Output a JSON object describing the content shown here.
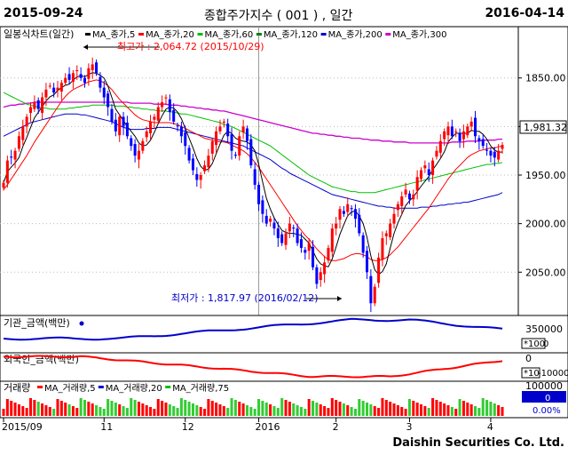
{
  "header": {
    "start_date": "2015-09-24",
    "title": "종합주가지수 ( 001 ) , 일간",
    "end_date": "2016-04-14"
  },
  "footer": {
    "company": "Daishin Securities Co. Ltd."
  },
  "legend": {
    "title": "일봉식차트(일간)",
    "items": [
      {
        "label": "MA_종가,5",
        "color": "#000000"
      },
      {
        "label": "MA_종가,20",
        "color": "#ff0000"
      },
      {
        "label": "MA_종가,60",
        "color": "#00c000"
      },
      {
        "label": "MA_종가,120",
        "color": "#008000"
      },
      {
        "label": "MA_종가,200",
        "color": "#0000cc"
      },
      {
        "label": "MA_종가,300",
        "color": "#cc00cc"
      }
    ]
  },
  "annotations": {
    "high": "최고가 : 2,064.72 (2015/10/29)",
    "low": "최저가 : 1,817.97 (2016/02/12)",
    "last_price": "1,981.32"
  },
  "sub_panels": {
    "institution": {
      "title": "기관_금액(백만)",
      "tick": "350000",
      "tick2": "0",
      "scale": "*100"
    },
    "foreign": {
      "title": "외국인_금액(백만)",
      "tick": "0",
      "tick2": "-100000",
      "scale": "*10"
    },
    "volume": {
      "title": "거래량",
      "legend": [
        "MA_거래량,5",
        "MA_거래량,20",
        "MA_거래량,75"
      ],
      "tick": "100000",
      "tick2": "0",
      "box_value": "0",
      "box_pct": "0.00%"
    }
  },
  "x_axis": {
    "labels": [
      "2015/09",
      "11",
      "12",
      "2016",
      "2",
      "3",
      "4"
    ]
  },
  "y_axis": {
    "ticks": [
      "2050.00",
      "2000.00",
      "1950.00",
      "1900.00",
      "1850.00"
    ]
  },
  "colors": {
    "up": "#ff0000",
    "down": "#0000ff",
    "ma5": "#000000",
    "ma20": "#ff0000",
    "ma60": "#00c000",
    "ma120": "#800000",
    "ma200": "#0000cc",
    "ma300": "#cc00cc"
  },
  "chart_data": {
    "type": "candlestick",
    "y_range": [
      1810,
      2090
    ],
    "y_ticks": [
      1850,
      1900,
      1950,
      2000,
      2050
    ],
    "x_labels": [
      "2015/09",
      "11",
      "12",
      "2016",
      "2",
      "3",
      "4"
    ],
    "closes": [
      1942,
      1965,
      1968,
      1975,
      1990,
      2000,
      2010,
      2020,
      2025,
      2018,
      2030,
      2038,
      2042,
      2035,
      2040,
      2045,
      2050,
      2048,
      2055,
      2058,
      2050,
      2045,
      2060,
      2064,
      2055,
      2040,
      2030,
      2020,
      2005,
      1995,
      2010,
      2000,
      1990,
      1980,
      1970,
      1975,
      1985,
      1995,
      2005,
      2010,
      2020,
      2025,
      2030,
      2015,
      2005,
      2000,
      1990,
      1980,
      1965,
      1955,
      1945,
      1950,
      1960,
      1970,
      1985,
      1995,
      2000,
      2005,
      1990,
      1975,
      1970,
      1990,
      2000,
      1985,
      1960,
      1940,
      1920,
      1910,
      1900,
      1905,
      1895,
      1885,
      1880,
      1890,
      1900,
      1895,
      1880,
      1875,
      1870,
      1880,
      1855,
      1838,
      1850,
      1860,
      1875,
      1895,
      1900,
      1915,
      1910,
      1920,
      1915,
      1905,
      1890,
      1870,
      1850,
      1818,
      1835,
      1865,
      1885,
      1890,
      1900,
      1910,
      1920,
      1928,
      1935,
      1925,
      1930,
      1948,
      1955,
      1960,
      1950,
      1965,
      1975,
      1985,
      1995,
      2000,
      1990,
      1995,
      1985,
      1995,
      2000,
      2005,
      1990,
      1985,
      1980,
      1975,
      1970,
      1968,
      1975,
      1981
    ],
    "ma20": [
      1935,
      1940,
      1946,
      1952,
      1958,
      1964,
      1970,
      1977,
      1984,
      1990,
      1996,
      2002,
      2008,
      2014,
      2020,
      2026,
      2031,
      2035,
      2038,
      2040,
      2042,
      2044,
      2046,
      2047,
      2048,
      2047,
      2045,
      2042,
      2038,
      2033,
      2028,
      2024,
      2020,
      2016,
      2012,
      2009,
      2007,
      2006,
      2005,
      2004,
      2004,
      2004,
      2004,
      2004,
      2003,
      2002,
      2000,
      1998,
      1996,
      1994,
      1992,
      1990,
      1988,
      1987,
      1986,
      1985,
      1984,
      1984,
      1983,
      1981,
      1979,
      1977,
      1975,
      1972,
      1968,
      1963,
      1958,
      1952,
      1946,
      1940,
      1934,
      1928,
      1922,
      1916,
      1910,
      1904,
      1898,
      1893,
      1888,
      1884,
      1879,
      1874,
      1870,
      1866,
      1863,
      1862,
      1862,
      1863,
      1864,
      1866,
      1868,
      1869,
      1869,
      1868,
      1866,
      1863,
      1862,
      1862,
      1863,
      1865,
      1868,
      1872,
      1876,
      1881,
      1886,
      1891,
      1896,
      1901,
      1906,
      1911,
      1916,
      1922,
      1928,
      1934,
      1940,
      1946,
      1951,
      1956,
      1960,
      1964,
      1968,
      1971,
      1973,
      1975,
      1976,
      1977,
      1978,
      1978,
      1979,
      1980
    ],
    "ma60": [
      2035,
      2033,
      2031,
      2029,
      2027,
      2025,
      2023,
      2022,
      2021,
      2020,
      2019,
      2019,
      2018,
      2018,
      2018,
      2018,
      2018,
      2019,
      2019,
      2020,
      2020,
      2021,
      2021,
      2022,
      2022,
      2022,
      2022,
      2022,
      2022,
      2021,
      2021,
      2021,
      2020,
      2020,
      2019,
      2019,
      2018,
      2018,
      2017,
      2017,
      2016,
      2016,
      2016,
      2015,
      2015,
      2014,
      2013,
      2013,
      2012,
      2011,
      2010,
      2009,
      2008,
      2007,
      2006,
      2005,
      2004,
      2002,
      2001,
      2000,
      1998,
      1996,
      1994,
      1992,
      1990,
      1988,
      1986,
      1984,
      1982,
      1980,
      1977,
      1974,
      1971,
      1968,
      1965,
      1962,
      1959,
      1956,
      1953,
      1950,
      1948,
      1946,
      1944,
      1942,
      1940,
      1938,
      1937,
      1936,
      1935,
      1934,
      1933,
      1933,
      1932,
      1932,
      1932,
      1932,
      1932,
      1933,
      1934,
      1935,
      1936,
      1937,
      1938,
      1939,
      1940,
      1941,
      1942,
      1943,
      1944,
      1945,
      1946,
      1947,
      1948,
      1949,
      1950,
      1951,
      1952,
      1953,
      1954,
      1955,
      1956,
      1957,
      1958,
      1959,
      1960,
      1961,
      1961,
      1962,
      1962,
      1963
    ],
    "ma200": [
      1990,
      1992,
      1994,
      1996,
      1998,
      2000,
      2002,
      2004,
      2005,
      2006,
      2007,
      2008,
      2009,
      2010,
      2011,
      2012,
      2013,
      2013,
      2013,
      2013,
      2012,
      2012,
      2011,
      2010,
      2009,
      2008,
      2007,
      2006,
      2005,
      2003,
      2001,
      1999,
      1998,
      1997,
      1997,
      1997,
      1997,
      1998,
      1998,
      1998,
      1999,
      1999,
      1999,
      1999,
      1998,
      1997,
      1996,
      1995,
      1994,
      1993,
      1992,
      1991,
      1990,
      1989,
      1988,
      1987,
      1986,
      1985,
      1984,
      1983,
      1982,
      1981,
      1980,
      1978,
      1976,
      1974,
      1972,
      1970,
      1968,
      1966,
      1963,
      1960,
      1957,
      1955,
      1952,
      1950,
      1948,
      1946,
      1944,
      1942,
      1940,
      1938,
      1936,
      1934,
      1932,
      1930,
      1929,
      1928,
      1927,
      1926,
      1925,
      1924,
      1923,
      1922,
      1921,
      1920,
      1919,
      1918,
      1918,
      1917,
      1917,
      1916,
      1916,
      1916,
      1916,
      1916,
      1916,
      1916,
      1917,
      1917,
      1917,
      1918,
      1918,
      1919,
      1919,
      1920,
      1920,
      1921,
      1921,
      1922,
      1922,
      1923,
      1924,
      1925,
      1926,
      1927,
      1928,
      1929,
      1930,
      1932
    ],
    "ma300": [
      2020,
      2021,
      2022,
      2022,
      2023,
      2023,
      2024,
      2024,
      2025,
      2025,
      2025,
      2025,
      2025,
      2025,
      2025,
      2025,
      2025,
      2025,
      2025,
      2025,
      2025,
      2025,
      2025,
      2025,
      2025,
      2025,
      2025,
      2025,
      2025,
      2025,
      2025,
      2025,
      2025,
      2024,
      2024,
      2024,
      2024,
      2024,
      2024,
      2023,
      2023,
      2023,
      2023,
      2022,
      2022,
      2022,
      2021,
      2021,
      2020,
      2020,
      2019,
      2019,
      2018,
      2018,
      2017,
      2017,
      2016,
      2016,
      2015,
      2014,
      2013,
      2012,
      2011,
      2010,
      2009,
      2008,
      2007,
      2006,
      2005,
      2004,
      2003,
      2002,
      2001,
      2000,
      1999,
      1998,
      1997,
      1996,
      1995,
      1994,
      1993,
      1993,
      1992,
      1992,
      1991,
      1991,
      1990,
      1990,
      1989,
      1989,
      1988,
      1988,
      1988,
      1987,
      1987,
      1986,
      1986,
      1986,
      1985,
      1985,
      1985,
      1984,
      1984,
      1984,
      1984,
      1983,
      1983,
      1983,
      1983,
      1983,
      1983,
      1983,
      1983,
      1983,
      1983,
      1983,
      1984,
      1984,
      1984,
      1984,
      1985,
      1985,
      1985,
      1985,
      1986,
      1986,
      1986,
      1986,
      1987,
      1987
    ]
  }
}
